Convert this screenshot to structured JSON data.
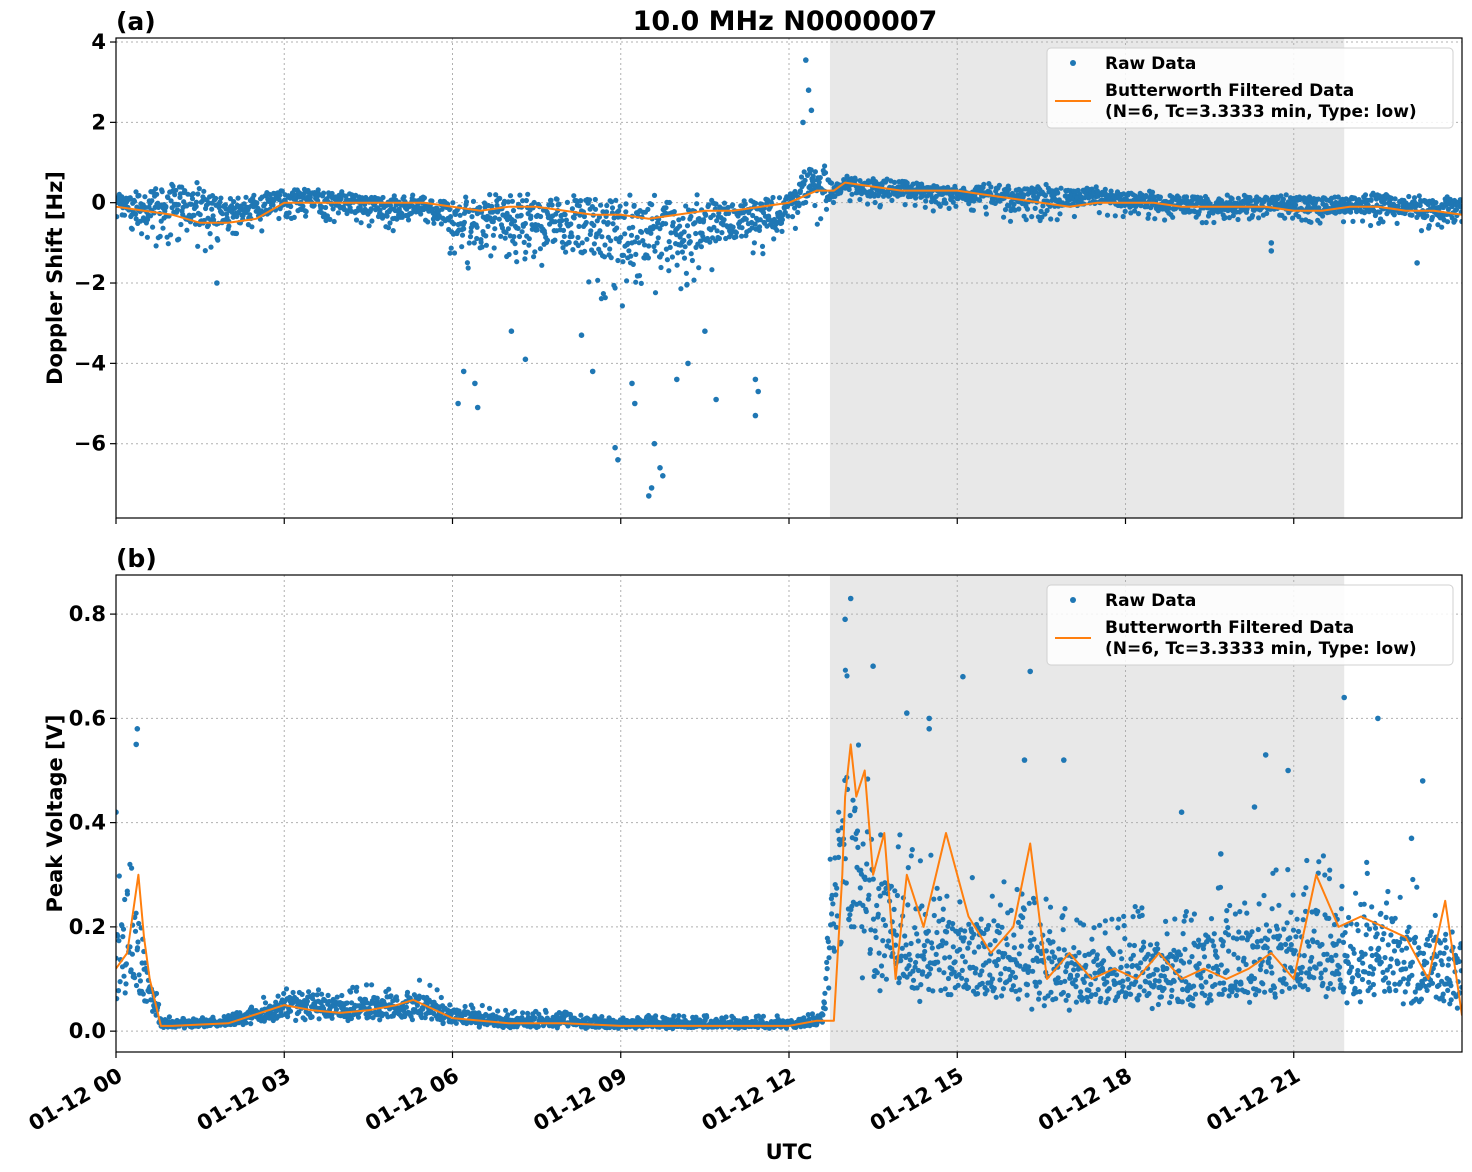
{
  "title": "10.0 MHz N0000007",
  "x_axis": {
    "label": "UTC",
    "range_hours": [
      0,
      24
    ],
    "ticks": [
      {
        "hour": 0,
        "label": "01-12 00"
      },
      {
        "hour": 3,
        "label": "01-12 03"
      },
      {
        "hour": 6,
        "label": "01-12 06"
      },
      {
        "hour": 9,
        "label": "01-12 09"
      },
      {
        "hour": 12,
        "label": "01-12 12"
      },
      {
        "hour": 15,
        "label": "01-12 15"
      },
      {
        "hour": 18,
        "label": "01-12 18"
      },
      {
        "hour": 21,
        "label": "01-12 21"
      }
    ]
  },
  "colors": {
    "raw": "#1f77b4",
    "filtered": "#ff7f0e",
    "shade": "#e8e8e8",
    "grid": "#b0b0b0"
  },
  "legend": {
    "raw": "Raw Data",
    "filtered_line1": "Butterworth Filtered Data",
    "filtered_line2": "(N=6, Tc=3.3333 min, Type: low)"
  },
  "chart_data": [
    {
      "panel": "(a)",
      "type": "scatter",
      "ylabel": "Doppler Shift [Hz]",
      "ylim": [
        -7.85,
        4.1
      ],
      "yticks": [
        4,
        2,
        0,
        -2,
        -4,
        -6
      ],
      "ytick_labels": [
        "4",
        "2",
        "0",
        "−2",
        "−4",
        "−6"
      ],
      "grid": true,
      "legend_position": "top-right",
      "shaded_region_hours": [
        12.73,
        21.9
      ],
      "series": [
        {
          "name": "Raw Data",
          "kind": "scatter-band",
          "x_hours": [
            0,
            0.5,
            1,
            1.5,
            2,
            2.5,
            3,
            3.5,
            4,
            4.5,
            5,
            5.5,
            6,
            6.5,
            7,
            7.5,
            8,
            8.5,
            9,
            9.5,
            10,
            10.5,
            11,
            11.5,
            12,
            12.3,
            12.6,
            12.8,
            13,
            13.5,
            14,
            14.5,
            15,
            15.5,
            16,
            16.5,
            17,
            17.5,
            18,
            18.5,
            19,
            19.5,
            20,
            20.5,
            21,
            21.5,
            22,
            22.5,
            23,
            23.5,
            24
          ],
          "upper": [
            0.2,
            0.3,
            0.6,
            0.5,
            0.2,
            0.2,
            0.4,
            0.4,
            0.3,
            0.2,
            0.2,
            0.2,
            0.2,
            0.2,
            0.3,
            0.2,
            0.3,
            0.3,
            0.2,
            0.2,
            0.2,
            0.2,
            0.1,
            0.2,
            0.3,
            1.0,
            1.0,
            0.5,
            0.7,
            0.6,
            0.6,
            0.5,
            0.4,
            0.5,
            0.4,
            0.5,
            0.4,
            0.4,
            0.3,
            0.3,
            0.2,
            0.2,
            0.2,
            0.2,
            0.2,
            0.2,
            0.2,
            0.3,
            0.2,
            0.2,
            0.1
          ],
          "lower": [
            -0.4,
            -1.0,
            -1.2,
            -1.3,
            -1.0,
            -0.8,
            -0.4,
            -0.4,
            -0.5,
            -0.6,
            -0.8,
            -0.4,
            -1.5,
            -1.8,
            -1.5,
            -1.6,
            -2.0,
            -2.3,
            -2.6,
            -2.4,
            -2.2,
            -1.8,
            -1.5,
            -1.3,
            -0.9,
            -0.6,
            -0.6,
            -0.1,
            0.1,
            -0.2,
            -0.1,
            -0.3,
            -0.1,
            -0.3,
            -0.6,
            -0.5,
            -0.4,
            -0.3,
            -0.4,
            -0.4,
            -0.5,
            -0.5,
            -0.5,
            -0.4,
            -0.4,
            -0.6,
            -0.5,
            -0.6,
            -0.6,
            -0.8,
            -0.5
          ],
          "outliers": [
            [
              1.8,
              -2.0
            ],
            [
              6.1,
              -5.0
            ],
            [
              6.4,
              -4.5
            ],
            [
              6.45,
              -5.1
            ],
            [
              6.2,
              -4.2
            ],
            [
              7.3,
              -3.9
            ],
            [
              7.05,
              -3.2
            ],
            [
              8.3,
              -3.3
            ],
            [
              8.5,
              -4.2
            ],
            [
              8.9,
              -6.1
            ],
            [
              8.95,
              -6.4
            ],
            [
              9.2,
              -4.5
            ],
            [
              9.5,
              -7.3
            ],
            [
              9.55,
              -7.1
            ],
            [
              9.6,
              -6.0
            ],
            [
              9.7,
              -6.6
            ],
            [
              9.75,
              -6.8
            ],
            [
              9.25,
              -5.0
            ],
            [
              10.0,
              -4.4
            ],
            [
              10.2,
              -4.0
            ],
            [
              10.5,
              -3.2
            ],
            [
              10.7,
              -4.9
            ],
            [
              11.4,
              -4.4
            ],
            [
              11.4,
              -5.3
            ],
            [
              11.45,
              -4.7
            ],
            [
              12.3,
              3.55
            ],
            [
              12.35,
              2.8
            ],
            [
              12.4,
              2.3
            ],
            [
              12.25,
              2.0
            ],
            [
              20.6,
              -1.0
            ],
            [
              20.6,
              -1.2
            ],
            [
              23.2,
              -1.5
            ]
          ]
        },
        {
          "name": "Butterworth Filtered Data\n(N=6, Tc=3.3333 min, Type: low)",
          "kind": "line",
          "x_hours": [
            0,
            0.5,
            1,
            1.5,
            2,
            2.5,
            3,
            3.5,
            4,
            4.5,
            5,
            5.5,
            6,
            6.5,
            7,
            7.5,
            8,
            8.5,
            9,
            9.5,
            10,
            10.5,
            11,
            11.5,
            12,
            12.5,
            12.8,
            13,
            13.5,
            14,
            14.5,
            15,
            15.5,
            16,
            16.5,
            17,
            17.5,
            18,
            18.5,
            19,
            19.5,
            20,
            20.5,
            21,
            21.5,
            22,
            22.5,
            23,
            23.5,
            24
          ],
          "y": [
            -0.1,
            -0.2,
            -0.3,
            -0.5,
            -0.5,
            -0.4,
            0.0,
            0.0,
            0.0,
            0.0,
            0.0,
            0.0,
            -0.1,
            -0.2,
            -0.1,
            -0.1,
            -0.2,
            -0.3,
            -0.3,
            -0.4,
            -0.3,
            -0.2,
            -0.2,
            -0.1,
            0.0,
            0.3,
            0.3,
            0.5,
            0.4,
            0.3,
            0.3,
            0.3,
            0.2,
            0.1,
            0.0,
            -0.1,
            0.0,
            0.0,
            0.0,
            -0.1,
            -0.1,
            -0.1,
            -0.1,
            -0.2,
            -0.2,
            -0.1,
            -0.1,
            -0.2,
            -0.2,
            -0.3
          ]
        }
      ]
    },
    {
      "panel": "(b)",
      "type": "scatter",
      "ylabel": "Peak Voltage [V]",
      "xlabel": "UTC",
      "ylim": [
        -0.04,
        0.875
      ],
      "yticks": [
        0.8,
        0.6,
        0.4,
        0.2,
        0.0
      ],
      "ytick_labels": [
        "0.8",
        "0.6",
        "0.4",
        "0.2",
        "0.0"
      ],
      "grid": true,
      "legend_position": "top-right",
      "shaded_region_hours": [
        12.73,
        21.9
      ],
      "series": [
        {
          "name": "Raw Data",
          "kind": "scatter-band",
          "x_hours": [
            0,
            0.2,
            0.4,
            0.6,
            0.8,
            1,
            2,
            3,
            3.5,
            4,
            5,
            5.5,
            6,
            7,
            8,
            9,
            10,
            11,
            12,
            12.6,
            12.8,
            13,
            13.2,
            13.5,
            14,
            14.5,
            15,
            15.5,
            16,
            16.5,
            17,
            17.5,
            18,
            18.5,
            19,
            19.5,
            20,
            20.5,
            21,
            21.5,
            22,
            22.5,
            23,
            23.5,
            24
          ],
          "upper": [
            0.3,
            0.32,
            0.35,
            0.15,
            0.03,
            0.03,
            0.03,
            0.09,
            0.08,
            0.08,
            0.1,
            0.1,
            0.06,
            0.04,
            0.04,
            0.03,
            0.03,
            0.03,
            0.03,
            0.04,
            0.5,
            0.72,
            0.6,
            0.45,
            0.4,
            0.35,
            0.3,
            0.3,
            0.28,
            0.3,
            0.25,
            0.22,
            0.25,
            0.25,
            0.22,
            0.28,
            0.28,
            0.3,
            0.33,
            0.35,
            0.3,
            0.35,
            0.3,
            0.28,
            0.2
          ],
          "lower": [
            0.04,
            0.05,
            0.05,
            0.03,
            0.005,
            0.005,
            0.01,
            0.02,
            0.02,
            0.02,
            0.02,
            0.02,
            0.01,
            0.005,
            0.005,
            0.005,
            0.005,
            0.005,
            0.005,
            0.01,
            0.1,
            0.15,
            0.12,
            0.07,
            0.06,
            0.05,
            0.05,
            0.05,
            0.04,
            0.04,
            0.04,
            0.04,
            0.04,
            0.04,
            0.04,
            0.04,
            0.05,
            0.05,
            0.05,
            0.06,
            0.05,
            0.05,
            0.04,
            0.03,
            0.02
          ],
          "outliers": [
            [
              0.38,
              0.58
            ],
            [
              0.36,
              0.55
            ],
            [
              0.0,
              0.42
            ],
            [
              13.1,
              0.83
            ],
            [
              13.0,
              0.79
            ],
            [
              13.5,
              0.7
            ],
            [
              14.1,
              0.61
            ],
            [
              14.5,
              0.58
            ],
            [
              14.5,
              0.6
            ],
            [
              15.1,
              0.68
            ],
            [
              16.3,
              0.69
            ],
            [
              16.9,
              0.52
            ],
            [
              16.2,
              0.52
            ],
            [
              19.0,
              0.42
            ],
            [
              19.7,
              0.34
            ],
            [
              20.3,
              0.43
            ],
            [
              20.5,
              0.53
            ],
            [
              20.9,
              0.5
            ],
            [
              21.9,
              0.64
            ],
            [
              22.5,
              0.6
            ],
            [
              23.3,
              0.48
            ],
            [
              23.1,
              0.37
            ]
          ]
        },
        {
          "name": "Butterworth Filtered Data\n(N=6, Tc=3.3333 min, Type: low)",
          "kind": "line",
          "x_hours": [
            0,
            0.2,
            0.4,
            0.5,
            0.6,
            0.8,
            1,
            2,
            3,
            3.5,
            4,
            4.5,
            5,
            5.3,
            5.5,
            6,
            7,
            8,
            9,
            10,
            11,
            12,
            12.5,
            12.8,
            12.95,
            13.0,
            13.1,
            13.2,
            13.35,
            13.5,
            13.7,
            13.9,
            14.1,
            14.4,
            14.8,
            15.2,
            15.6,
            16.0,
            16.3,
            16.6,
            17.0,
            17.4,
            17.8,
            18.2,
            18.6,
            19.0,
            19.4,
            19.8,
            20.2,
            20.6,
            21.0,
            21.4,
            21.8,
            22.2,
            22.6,
            23.0,
            23.4,
            23.7,
            24
          ],
          "y": [
            0.12,
            0.15,
            0.3,
            0.18,
            0.1,
            0.01,
            0.01,
            0.015,
            0.05,
            0.04,
            0.035,
            0.04,
            0.05,
            0.06,
            0.05,
            0.025,
            0.015,
            0.015,
            0.01,
            0.01,
            0.01,
            0.01,
            0.02,
            0.02,
            0.3,
            0.45,
            0.55,
            0.45,
            0.5,
            0.3,
            0.38,
            0.1,
            0.3,
            0.2,
            0.38,
            0.22,
            0.15,
            0.2,
            0.36,
            0.1,
            0.15,
            0.1,
            0.12,
            0.1,
            0.15,
            0.1,
            0.12,
            0.1,
            0.12,
            0.15,
            0.1,
            0.3,
            0.2,
            0.22,
            0.2,
            0.18,
            0.1,
            0.25,
            0.03
          ]
        }
      ]
    }
  ]
}
